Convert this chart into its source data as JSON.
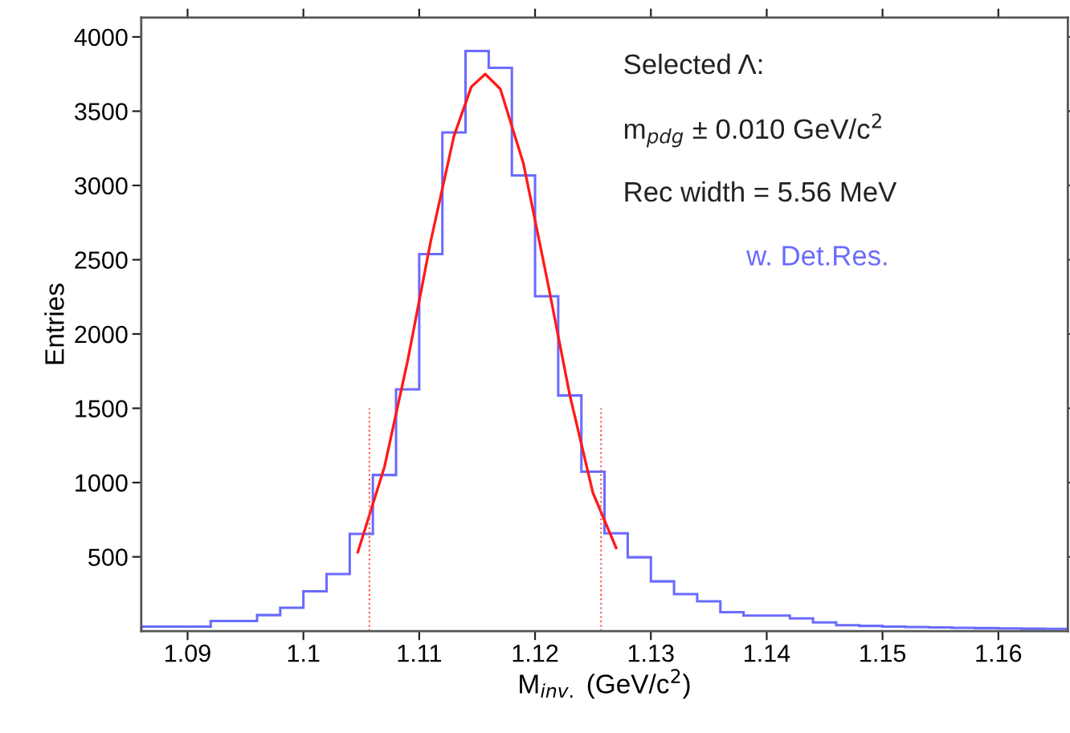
{
  "chart_data": {
    "type": "histogram",
    "xlabel": "M$_{inv.}$ (GeV/c$^{2}$)",
    "ylabel": "Entries",
    "annotations": [
      "Selected Λ:",
      "m$_{pdg}$ ± 0.010 GeV/c$^{2}$",
      "Rec width = 5.56 MeV"
    ],
    "xlim": [
      1.086,
      1.166
    ],
    "ylim": [
      0,
      4130
    ],
    "xticks": [
      1.09,
      1.1,
      1.11,
      1.12,
      1.13,
      1.14,
      1.15,
      1.16
    ],
    "yticks": [
      500,
      1000,
      1500,
      2000,
      2500,
      3000,
      3500,
      4000
    ],
    "grid": false,
    "series": [
      {
        "type": "histogram",
        "name": "w. Det.Res.",
        "color": "#6b6bff",
        "bins": [
          1.086,
          1.088,
          1.09,
          1.092,
          1.094,
          1.096,
          1.098,
          1.1,
          1.102,
          1.104,
          1.106,
          1.108,
          1.11,
          1.112,
          1.114,
          1.116,
          1.118,
          1.12,
          1.122,
          1.124,
          1.126,
          1.128,
          1.13,
          1.132,
          1.134,
          1.136,
          1.138,
          1.14,
          1.142,
          1.144,
          1.146,
          1.148,
          1.15,
          1.152,
          1.154,
          1.156,
          1.158,
          1.16,
          1.162,
          1.164,
          1.166
        ],
        "values": [
          30,
          30,
          30,
          68,
          68,
          108,
          157,
          268,
          384,
          654,
          1051,
          1627,
          2538,
          3357,
          3905,
          3792,
          3068,
          2254,
          1586,
          1073,
          659,
          497,
          335,
          249,
          200,
          127,
          105,
          105,
          86,
          59,
          40,
          35,
          30,
          28,
          25,
          22,
          20,
          18,
          16,
          15
        ]
      },
      {
        "type": "line",
        "color": "#ff1a1a",
        "line_style": "solid",
        "x": [
          1.1047,
          1.107,
          1.109,
          1.111,
          1.113,
          1.1145,
          1.1157,
          1.117,
          1.119,
          1.121,
          1.123,
          1.125,
          1.127
        ],
        "values": [
          532,
          1106,
          1820,
          2627,
          3333,
          3664,
          3750,
          3650,
          3147,
          2384,
          1589,
          930,
          560
        ]
      },
      {
        "type": "line",
        "color": "#ff4d4d",
        "line_style": "dotted",
        "x": [
          1.1057,
          1.1057
        ],
        "values": [
          0,
          1500
        ]
      },
      {
        "type": "line",
        "color": "#ff4d4d",
        "line_style": "dotted",
        "x": [
          1.1257,
          1.1257
        ],
        "values": [
          0,
          1500
        ]
      }
    ]
  }
}
